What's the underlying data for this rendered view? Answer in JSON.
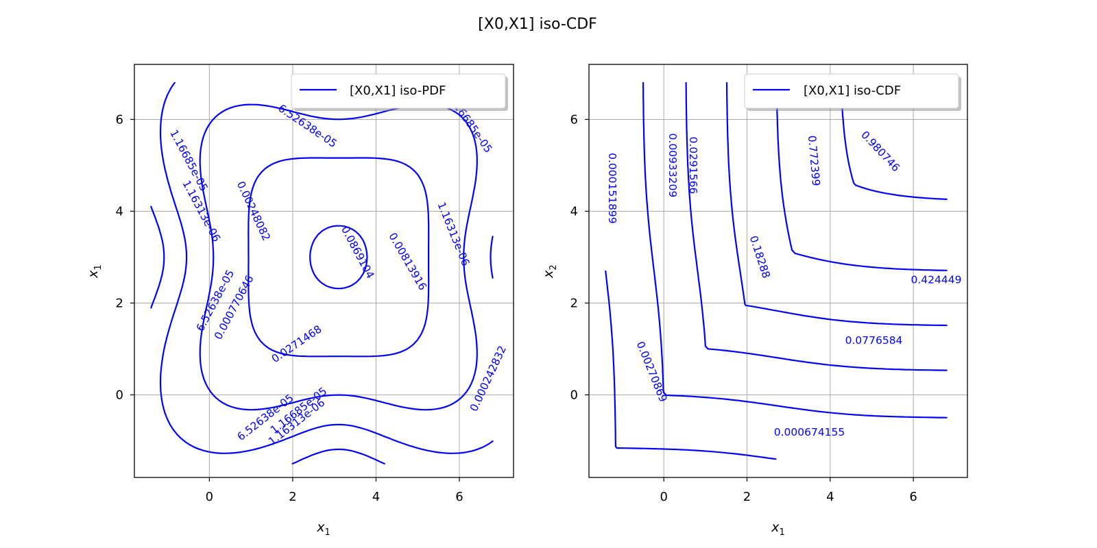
{
  "figure_title": "[X0,X1] iso-CDF",
  "chart_data": [
    {
      "type": "contour",
      "subplot": "left",
      "legend": "[X0,X1] iso-PDF",
      "legend_position": "upper-right",
      "xlabel": "x1",
      "ylabel": "x1",
      "xlim": [
        -1.8,
        7.3
      ],
      "ylim": [
        -1.8,
        7.2
      ],
      "xticks": [
        0,
        2,
        4,
        6
      ],
      "yticks": [
        0,
        2,
        4,
        6
      ],
      "grid": true,
      "line_color": "#0000ff",
      "levels": [
        "1.16313e-06",
        "1.16685e-05",
        "6.52638e-05",
        "0.000242832",
        "0.000770646",
        "0.00248082",
        "0.00813916",
        "0.0271468",
        "0.0869104"
      ],
      "contour_labels": [
        {
          "text": "6.52638e-05",
          "x": 2.35,
          "y": 5.85,
          "angle": 34
        },
        {
          "text": "0.000242832",
          "x": 6.7,
          "y": 0.35,
          "angle": -65
        },
        {
          "text": "1.16685e-05",
          "x": 6.25,
          "y": 5.9,
          "angle": 55
        },
        {
          "text": "1.16685e-05",
          "x": -0.5,
          "y": 5.1,
          "angle": 62
        },
        {
          "text": "1.16313e-06",
          "x": -0.2,
          "y": 4.0,
          "angle": 62
        },
        {
          "text": "0.00248082",
          "x": 1.05,
          "y": 4.0,
          "angle": 65
        },
        {
          "text": "0.0869104",
          "x": 3.55,
          "y": 3.1,
          "angle": 62
        },
        {
          "text": "0.00813916",
          "x": 4.75,
          "y": 2.9,
          "angle": 60
        },
        {
          "text": "1.16313e-06",
          "x": 5.85,
          "y": 3.5,
          "angle": 68
        },
        {
          "text": "6.52638e-05",
          "x": 0.15,
          "y": 2.05,
          "angle": -62
        },
        {
          "text": "0.000770646",
          "x": 0.6,
          "y": 1.9,
          "angle": -62
        },
        {
          "text": "0.0271468",
          "x": 2.1,
          "y": 1.1,
          "angle": -34
        },
        {
          "text": "6.52638e-05",
          "x": 1.35,
          "y": -0.5,
          "angle": -38
        },
        {
          "text": "1.16685e-05",
          "x": 2.15,
          "y": -0.35,
          "angle": -38
        },
        {
          "text": "1.16313e-06",
          "x": 2.1,
          "y": -0.6,
          "angle": -38
        }
      ]
    },
    {
      "type": "contour",
      "subplot": "right",
      "legend": "[X0,X1] iso-CDF",
      "legend_position": "upper-right",
      "xlabel": "x1",
      "ylabel": "x2",
      "xlim": [
        -1.8,
        7.3
      ],
      "ylim": [
        -1.8,
        7.2
      ],
      "xticks": [
        0,
        2,
        4,
        6
      ],
      "yticks": [
        0,
        2,
        4,
        6
      ],
      "grid": true,
      "line_color": "#0000ff",
      "levels": [
        "0.000151899",
        "0.000674155",
        "0.00270869",
        "0.00933209",
        "0.0291566",
        "0.0776584",
        "0.18288",
        "0.424449",
        "0.772399",
        "0.980746"
      ],
      "contour_labels": [
        {
          "text": "0.000151899",
          "x": -1.25,
          "y": 4.5,
          "angle": 90
        },
        {
          "text": "0.00933209",
          "x": 0.2,
          "y": 5.0,
          "angle": 90
        },
        {
          "text": "0.0291566",
          "x": 0.7,
          "y": 5.0,
          "angle": 90
        },
        {
          "text": "0.772399",
          "x": 3.6,
          "y": 5.1,
          "angle": 85
        },
        {
          "text": "0.980746",
          "x": 5.2,
          "y": 5.3,
          "angle": 47
        },
        {
          "text": "0.18288",
          "x": 2.3,
          "y": 3.0,
          "angle": 72
        },
        {
          "text": "0.424449",
          "x": 6.55,
          "y": 2.5,
          "angle": 0
        },
        {
          "text": "0.0776584",
          "x": 5.05,
          "y": 1.18,
          "angle": 0
        },
        {
          "text": "0.00270869",
          "x": -0.3,
          "y": 0.5,
          "angle": 68
        },
        {
          "text": "0.000674155",
          "x": 3.5,
          "y": -0.82,
          "angle": 0
        }
      ]
    }
  ]
}
